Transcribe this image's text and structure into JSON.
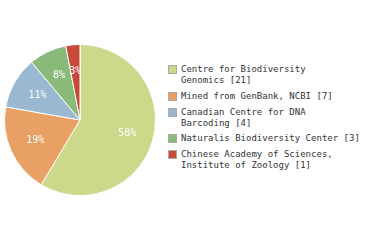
{
  "chart_data": {
    "type": "pie",
    "categories": [
      "Centre for Biodiversity\nGenomics [21]",
      "Mined from GenBank, NCBI [7]",
      "Canadian Centre for DNA\nBarcoding [4]",
      "Naturalis Biodiversity Center [3]",
      "Chinese Academy of Sciences,\nInstitute of Zoology [1]"
    ],
    "values": [
      58,
      19,
      11,
      8,
      3
    ],
    "value_labels": [
      "58%",
      "19%",
      "11%",
      "8%",
      "3%"
    ],
    "colors": [
      "#cdd98a",
      "#e8a064",
      "#9ab8d0",
      "#8aba7a",
      "#c84a3a"
    ],
    "data_labels": true,
    "legend": "right"
  }
}
